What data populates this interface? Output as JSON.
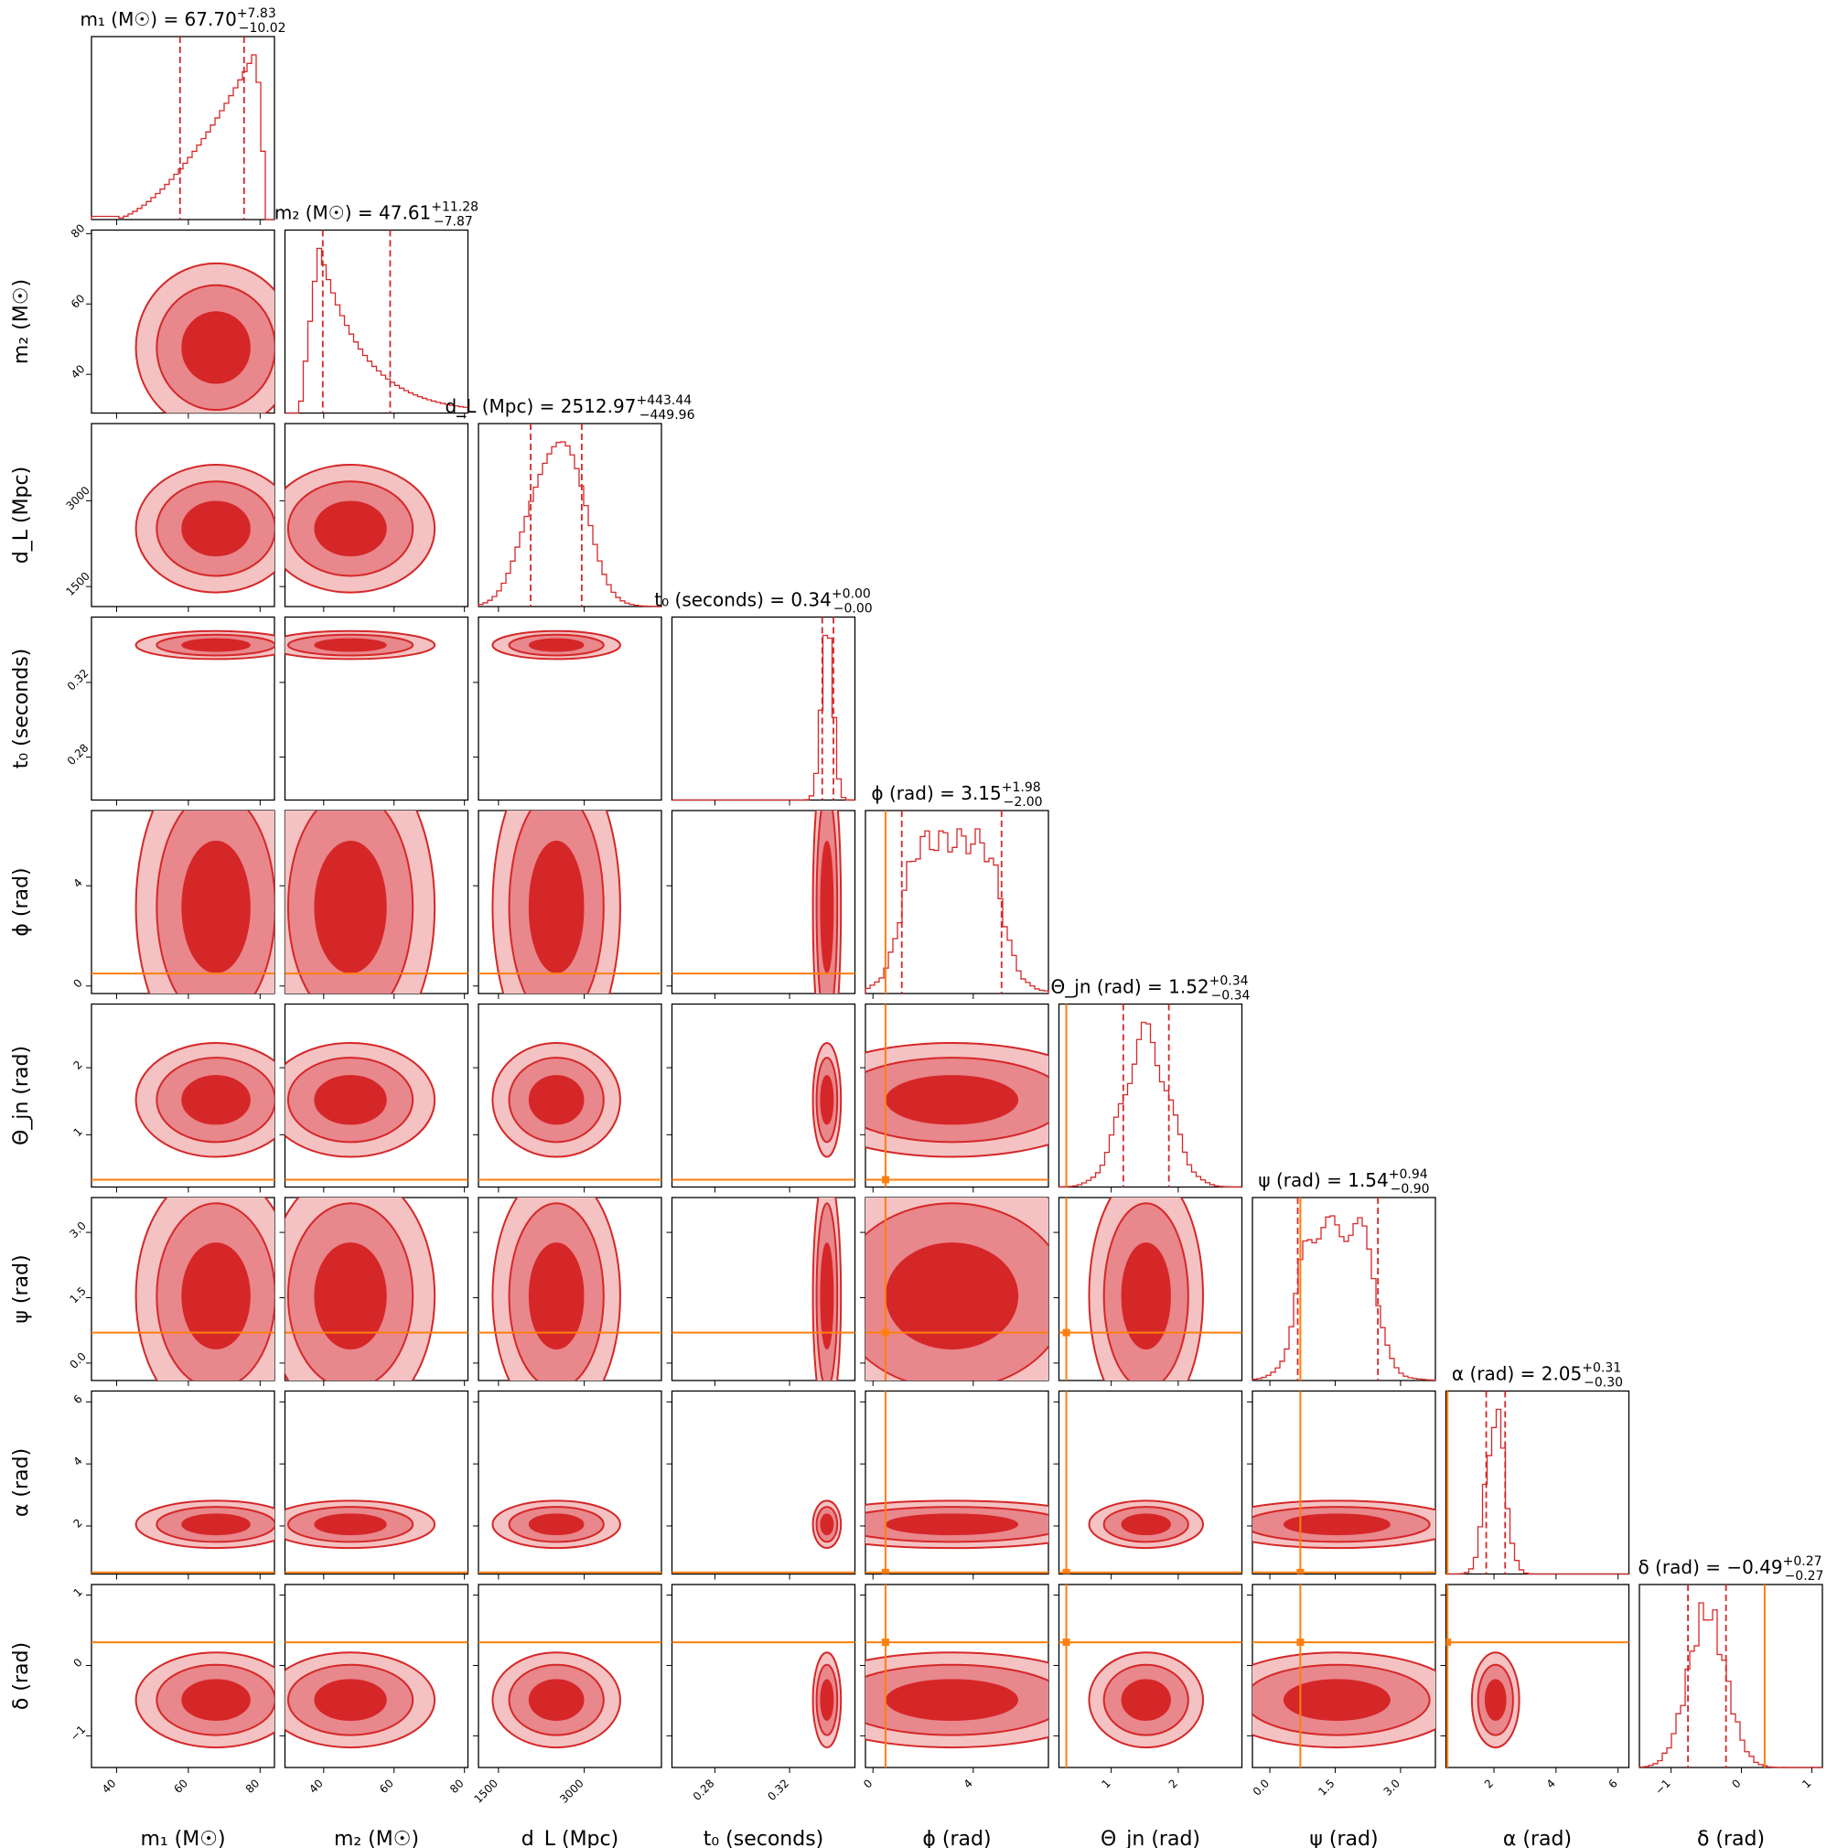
{
  "chart_data": {
    "type": "corner",
    "colors": {
      "posterior": "#d62728",
      "truth": "#ff7f0e",
      "level2": "#e8878c",
      "level3": "#f4c2c2"
    },
    "params": [
      {
        "key": "m1",
        "label": "m₁ (M☉)",
        "range": [
          33,
          84
        ],
        "ticks": [
          40,
          60,
          80
        ],
        "tick_labels": [
          "40",
          "60",
          "80"
        ],
        "median": 67.7,
        "lo": 57.68,
        "hi": 75.53,
        "truth": null,
        "title_main": "m₁ (M☉) = 67.70",
        "title_sup": "+7.83",
        "title_sub": "−10.02"
      },
      {
        "key": "m2",
        "label": "m₂ (M☉)",
        "range": [
          29,
          81
        ],
        "ticks": [
          40,
          60,
          80
        ],
        "tick_labels": [
          "40",
          "60",
          "80"
        ],
        "median": 47.61,
        "lo": 39.74,
        "hi": 58.89,
        "truth": null,
        "title_main": "m₂ (M☉) = 47.61",
        "title_sup": "+11.28",
        "title_sub": "−7.87"
      },
      {
        "key": "dL",
        "label": "d_L (Mpc)",
        "range": [
          1150,
          4350
        ],
        "ticks": [
          1500,
          3000
        ],
        "tick_labels": [
          "1500",
          "3000"
        ],
        "median": 2512.97,
        "lo": 2063,
        "hi": 2956,
        "truth": null,
        "title_main": "d_L (Mpc) = 2512.97",
        "title_sup": "+443.44",
        "title_sub": "−449.96"
      },
      {
        "key": "t0",
        "label": "t₀ (seconds)",
        "range": [
          0.257,
          0.355
        ],
        "ticks": [
          0.28,
          0.32
        ],
        "tick_labels": [
          "0.28",
          "0.32"
        ],
        "median": 0.34,
        "lo": 0.3375,
        "hi": 0.3435,
        "truth": null,
        "title_main": "t₀ (seconds) = 0.34",
        "title_sup": "+0.00",
        "title_sub": "−0.00"
      },
      {
        "key": "phi",
        "label": "ϕ (rad)",
        "range": [
          -0.3,
          7.0
        ],
        "ticks": [
          0,
          4
        ],
        "tick_labels": [
          "0",
          "4"
        ],
        "median": 3.15,
        "lo": 1.15,
        "hi": 5.13,
        "truth": 0.5,
        "title_main": "ϕ (rad) = 3.15",
        "title_sup": "+1.98",
        "title_sub": "−2.00"
      },
      {
        "key": "theta",
        "label": "Θ_jn (rad)",
        "range": [
          0.22,
          2.95
        ],
        "ticks": [
          1,
          2
        ],
        "tick_labels": [
          "1",
          "2"
        ],
        "median": 1.52,
        "lo": 1.18,
        "hi": 1.86,
        "truth": 0.33,
        "title_main": "Θ_jn (rad) = 1.52",
        "title_sup": "+0.34",
        "title_sub": "−0.34"
      },
      {
        "key": "psi",
        "label": "ψ (rad)",
        "range": [
          -0.4,
          3.8
        ],
        "ticks": [
          0.0,
          1.5,
          3.0
        ],
        "tick_labels": [
          "0.0",
          "1.5",
          "3.0"
        ],
        "median": 1.54,
        "lo": 0.64,
        "hi": 2.48,
        "truth": 0.7,
        "title_main": "ψ (rad) = 1.54",
        "title_sup": "+0.94",
        "title_sub": "−0.90"
      },
      {
        "key": "alpha",
        "label": "α (rad)",
        "range": [
          0.45,
          6.35
        ],
        "ticks": [
          2,
          4,
          6
        ],
        "tick_labels": [
          "2",
          "4",
          "6"
        ],
        "median": 2.05,
        "lo": 1.75,
        "hi": 2.36,
        "truth": 0.5,
        "title_main": "α (rad) = 2.05",
        "title_sup": "+0.31",
        "title_sub": "−0.30"
      },
      {
        "key": "delta",
        "label": "δ (rad)",
        "range": [
          -1.45,
          1.15
        ],
        "ticks": [
          -1,
          0,
          1
        ],
        "tick_labels": [
          "−1",
          "0",
          "1"
        ],
        "median": -0.49,
        "lo": -0.76,
        "hi": -0.22,
        "truth": 0.33,
        "title_main": "δ (rad) = −0.49",
        "title_sup": "+0.27",
        "title_sub": "−0.27"
      }
    ]
  }
}
